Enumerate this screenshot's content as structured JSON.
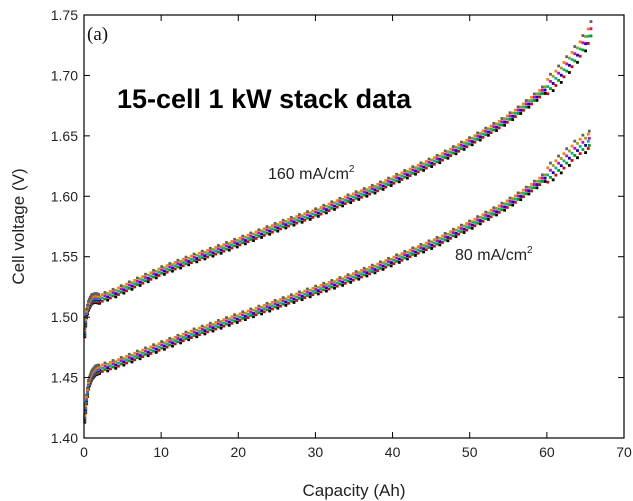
{
  "chart_data": {
    "type": "scatter",
    "panel_label": "(a)",
    "title": "15-cell 1 kW stack data",
    "xlabel": "Capacity (Ah)",
    "ylabel": "Cell voltage (V)",
    "xlim": [
      0,
      70
    ],
    "ylim": [
      1.4,
      1.75
    ],
    "xticks": [
      "0",
      "10",
      "20",
      "30",
      "40",
      "50",
      "60",
      "70"
    ],
    "yticks": [
      "1.40",
      "1.45",
      "1.50",
      "1.55",
      "1.60",
      "1.65",
      "1.70",
      "1.75"
    ],
    "grid": false,
    "cell_colors": [
      "#000000",
      "#e00000",
      "#00a000",
      "#0000e0",
      "#00b0b0",
      "#d000d0",
      "#a0a000",
      "#ff8000",
      "#606060"
    ],
    "annotations": [
      {
        "text": "160 mA/cm",
        "superscript": "2"
      },
      {
        "text": "80 mA/cm",
        "superscript": "2"
      }
    ],
    "series": [
      {
        "group": "160 mA/cm2",
        "x": [
          0,
          0.3,
          0.6,
          1.0,
          1.5,
          2,
          4,
          6,
          8,
          10,
          14,
          18,
          22,
          26,
          30,
          34,
          38,
          42,
          46,
          50,
          54,
          56,
          58,
          60,
          62,
          63,
          64,
          65,
          66
        ],
        "y": [
          1.48,
          1.502,
          1.51,
          1.515,
          1.516,
          1.515,
          1.52,
          1.526,
          1.532,
          1.538,
          1.548,
          1.557,
          1.567,
          1.577,
          1.586,
          1.597,
          1.607,
          1.619,
          1.631,
          1.645,
          1.66,
          1.669,
          1.679,
          1.69,
          1.703,
          1.711,
          1.719,
          1.728,
          1.74
        ]
      },
      {
        "group": "80 mA/cm2",
        "x": [
          0,
          0.3,
          0.6,
          1.0,
          1.5,
          2,
          4,
          6,
          8,
          10,
          14,
          18,
          22,
          26,
          30,
          34,
          38,
          42,
          46,
          50,
          54,
          56,
          58,
          60,
          62,
          63,
          64,
          65,
          65.5
        ],
        "y": [
          1.41,
          1.43,
          1.445,
          1.452,
          1.456,
          1.457,
          1.461,
          1.466,
          1.471,
          1.476,
          1.486,
          1.495,
          1.504,
          1.513,
          1.522,
          1.531,
          1.541,
          1.552,
          1.563,
          1.576,
          1.59,
          1.598,
          1.607,
          1.617,
          1.628,
          1.634,
          1.64,
          1.644,
          1.646
        ]
      }
    ]
  }
}
